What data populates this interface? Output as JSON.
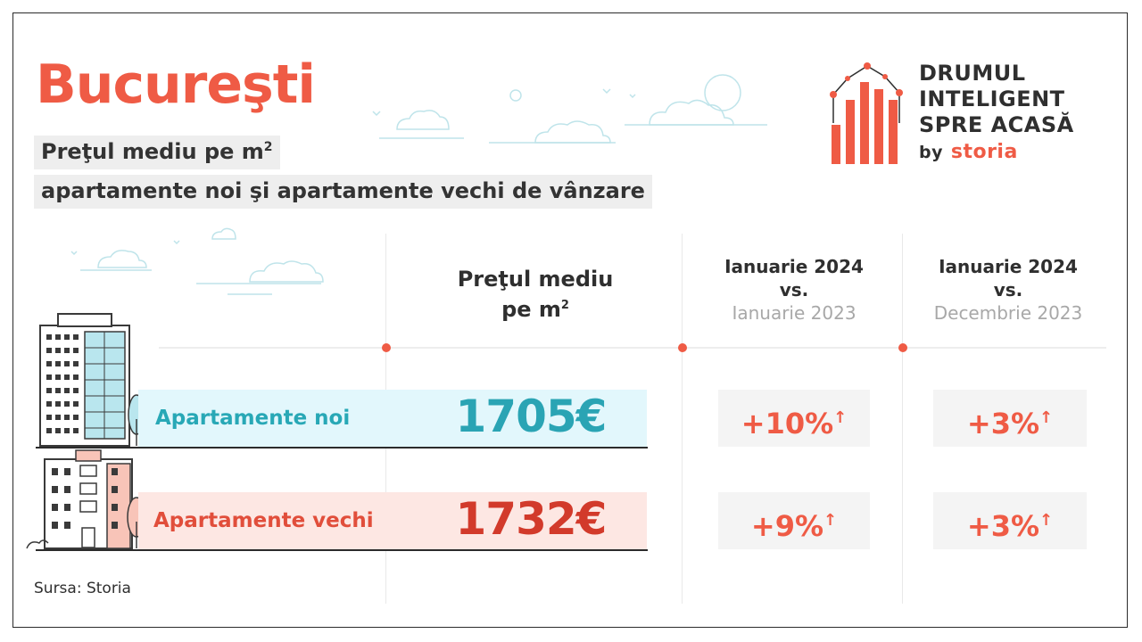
{
  "header": {
    "city": "Bucureşti",
    "subtitle_line1": "Preţul mediu pe m",
    "subtitle_line1_sup": "2",
    "subtitle_line2": "apartamente noi şi apartamente vechi de vânzare"
  },
  "logo": {
    "line1": "DRUMUL",
    "line2": "INTELIGENT",
    "line3": "SPRE ACASĂ",
    "by": "by",
    "brand": "storia"
  },
  "table": {
    "col_price_line1": "Preţul mediu",
    "col_price_line2": "pe m",
    "col_price_sup": "2",
    "col_yoy": {
      "line1": "Ianuarie 2024",
      "line2": "vs.",
      "line3": "Ianuarie 2023"
    },
    "col_mom": {
      "line1": "Ianuarie 2024",
      "line2": "vs.",
      "line3": "Decembrie 2023"
    },
    "rows": [
      {
        "label": "Apartamente noi",
        "price": "1705€",
        "yoy": "+10%",
        "mom": "+3%"
      },
      {
        "label": "Apartamente vechi",
        "price": "1732€",
        "yoy": "+9%",
        "mom": "+3%"
      }
    ],
    "arrow": "↑"
  },
  "source": "Sursa: Storia",
  "colors": {
    "accent": "#ef5b45",
    "teal": "#2aa4b4",
    "red_dark": "#d23a2b",
    "band_new": "#e2f7fc",
    "band_old": "#fde7e3"
  }
}
